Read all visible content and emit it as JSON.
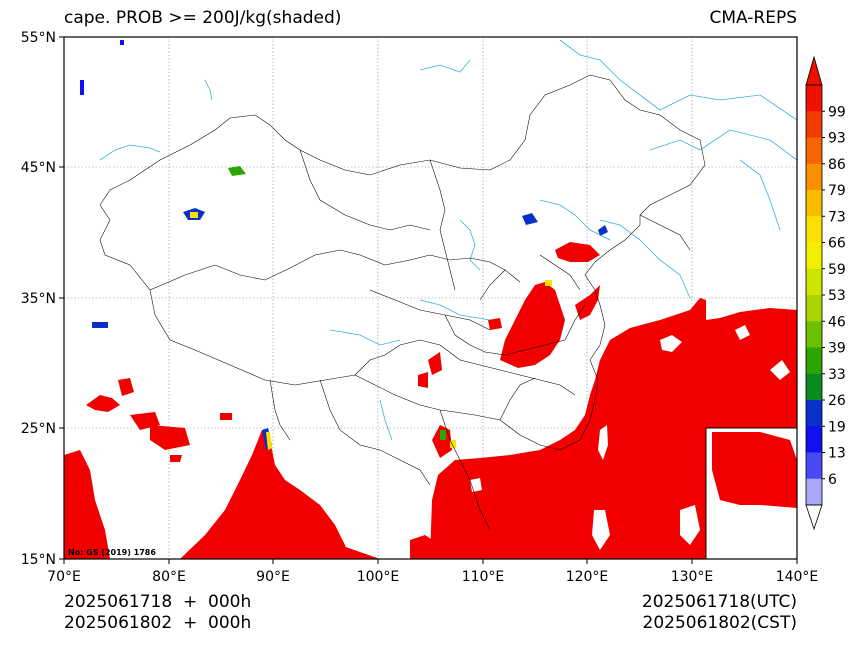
{
  "header": {
    "title_left": "cape. PROB >= 200J/kg(shaded)",
    "title_right": "CMA-REPS"
  },
  "footer": {
    "init_utc": "2025061718  +  000h",
    "init_cst": "2025061802  +  000h",
    "valid_utc": "2025061718(UTC)",
    "valid_cst": "2025061802(CST)"
  },
  "map": {
    "lat_labels": [
      "55°N",
      "45°N",
      "35°N",
      "25°N",
      "15°N"
    ],
    "lon_labels": [
      "70°E",
      "80°E",
      "90°E",
      "100°E",
      "110°E",
      "120°E",
      "130°E",
      "140°E"
    ],
    "lon_range": [
      70,
      140
    ],
    "lat_range": [
      15,
      55
    ],
    "note": "No: GS (2019) 1786",
    "colors": {
      "high_prob": "#f20000",
      "coastline": "#3ab0e0",
      "border": "#000000",
      "grid": "#888888"
    }
  },
  "colorbar": {
    "labels": [
      "99",
      "93",
      "86",
      "79",
      "73",
      "66",
      "59",
      "53",
      "46",
      "39",
      "33",
      "26",
      "19",
      "13",
      "6"
    ],
    "colors": [
      "#f01000",
      "#f33a00",
      "#f56600",
      "#f89000",
      "#fbbc00",
      "#fde000",
      "#f0f000",
      "#cde500",
      "#a9d600",
      "#6cc000",
      "#2ca500",
      "#0a8a20",
      "#0a30c8",
      "#1010f0",
      "#4a4af5",
      "#a8a8f8"
    ]
  }
}
